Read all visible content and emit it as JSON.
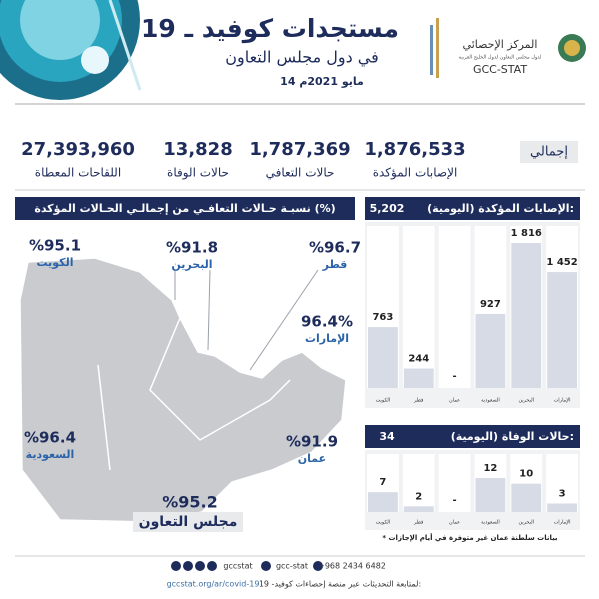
{
  "header": {
    "title": "مستجدات كوفيد ـ 19",
    "subtitle": "في دول مجلس التعاون",
    "date": "14 مايو 2021م",
    "org_name": "المركز الإحصائي",
    "org_subtitle": "لدول مجلس التعاون لدول الخليج العربية",
    "org_code": "GCC-STAT"
  },
  "totals": {
    "label": "إجمالي",
    "items": [
      {
        "value": "1,876,533",
        "label": "الإصابات المؤكدة"
      },
      {
        "value": "1,787,369",
        "label": "حالات التعافي"
      },
      {
        "value": "13,828",
        "label": "حالات الوفاة"
      },
      {
        "value": "27,393,960",
        "label": "اللقاحات المعطاة"
      }
    ]
  },
  "recovery": {
    "title": "نسبـة حـالات التعافـي من إجمالـي الحـالات المؤكدة (%)",
    "regions": [
      {
        "name": "الكويت",
        "percent": "%95.1"
      },
      {
        "name": "البحرين",
        "percent": "%91.8"
      },
      {
        "name": "قطر",
        "percent": "%96.7"
      },
      {
        "name": "الإمارات",
        "percent": "96.4%"
      },
      {
        "name": "السعودية",
        "percent": "%96.4"
      },
      {
        "name": "عمان",
        "percent": "%91.9"
      }
    ],
    "total": {
      "name": "مجلس التعاون",
      "percent": "%95.2"
    }
  },
  "chart_data": [
    {
      "type": "bar",
      "title": "الإصابات المؤكدة (اليومية):",
      "total": "5,202",
      "categories": [
        "الإمارات",
        "البحرين",
        "السعودية",
        "عمان",
        "قطر",
        "الكويت"
      ],
      "values": [
        1452,
        1816,
        927,
        null,
        244,
        763
      ],
      "value_labels": [
        "1 452",
        "1 816",
        "927",
        "-",
        "244",
        "763"
      ],
      "color": "#d6dbe6"
    },
    {
      "type": "bar",
      "title": "حالات الوفاة (اليومية):",
      "total": "34",
      "categories": [
        "الإمارات",
        "البحرين",
        "السعودية",
        "عمان",
        "قطر",
        "الكويت"
      ],
      "values": [
        3,
        10,
        12,
        null,
        2,
        7
      ],
      "value_labels": [
        "3",
        "10",
        "12",
        "-",
        "2",
        "7"
      ],
      "color": "#d6dbe6"
    }
  ],
  "note": "* بيانات سلطنة عمان غير متوفرة في أيام الإجازات",
  "footer": {
    "social": [
      "gccstat",
      "gcc-stat",
      "+968 2434 6482"
    ],
    "text": "لمتابعة التحديثات عبر منصة إحصاءات كوفيد- 19:",
    "url": "gccstat.org/ar/covid-19"
  }
}
